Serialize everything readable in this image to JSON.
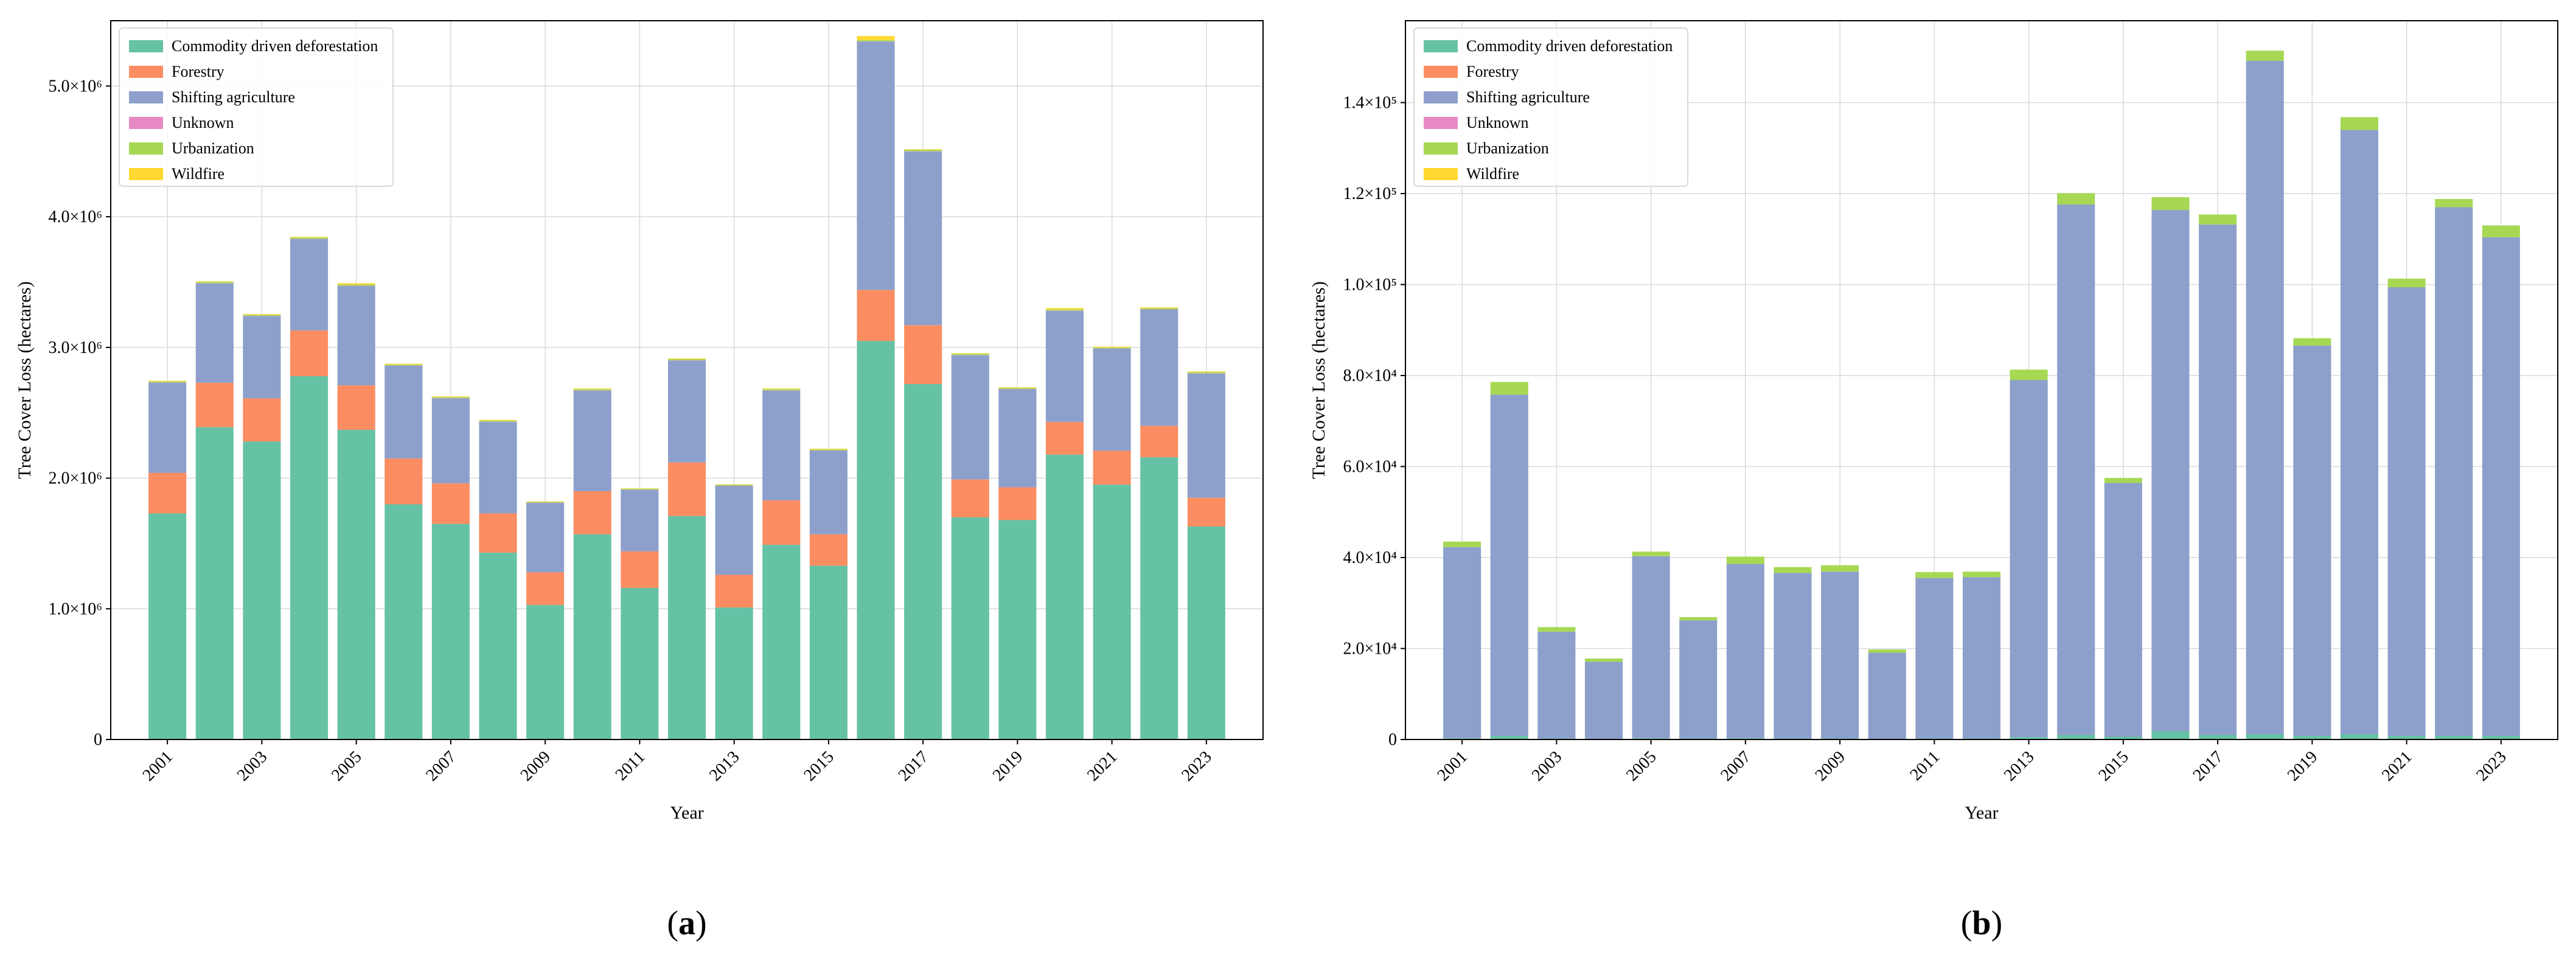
{
  "colors": {
    "Commodity driven deforestation": "#66c2a5",
    "Forestry": "#fc8d62",
    "Shifting agriculture": "#8da0cb",
    "Unknown": "#e78ac3",
    "Urbanization": "#a6d854",
    "Wildfire": "#ffd92f"
  },
  "chart_data": [
    {
      "type": "bar",
      "stacked": true,
      "panel_label": "a",
      "xlabel": "Year",
      "ylabel": "Tree Cover Loss (hectares)",
      "categories": [
        "2001",
        "2002",
        "2003",
        "2004",
        "2005",
        "2006",
        "2007",
        "2008",
        "2009",
        "2010",
        "2011",
        "2012",
        "2013",
        "2014",
        "2015",
        "2016",
        "2017",
        "2018",
        "2019",
        "2020",
        "2021",
        "2022",
        "2023"
      ],
      "x_tick_labels": [
        "2001",
        "2003",
        "2005",
        "2007",
        "2009",
        "2011",
        "2013",
        "2015",
        "2017",
        "2019",
        "2021",
        "2023"
      ],
      "ylim": [
        0,
        5500000
      ],
      "y_ticks": [
        {
          "value": 0,
          "label": "0"
        },
        {
          "value": 1000000,
          "label": "1.0×10⁶"
        },
        {
          "value": 2000000,
          "label": "2.0×10⁶"
        },
        {
          "value": 3000000,
          "label": "3.0×10⁶"
        },
        {
          "value": 4000000,
          "label": "4.0×10⁶"
        },
        {
          "value": 5000000,
          "label": "5.0×10⁶"
        }
      ],
      "grid": true,
      "legend_position": "top-left",
      "series": [
        {
          "name": "Commodity driven deforestation",
          "values": [
            1730000,
            2390000,
            2280000,
            2780000,
            2370000,
            1800000,
            1650000,
            1430000,
            1030000,
            1570000,
            1160000,
            1710000,
            1010000,
            1490000,
            1330000,
            3050000,
            2720000,
            1700000,
            1680000,
            2180000,
            1950000,
            2160000,
            1630000
          ]
        },
        {
          "name": "Forestry",
          "values": [
            310000,
            340000,
            330000,
            350000,
            340000,
            350000,
            310000,
            300000,
            250000,
            330000,
            280000,
            410000,
            250000,
            340000,
            240000,
            390000,
            450000,
            290000,
            250000,
            250000,
            260000,
            240000,
            220000
          ]
        },
        {
          "name": "Shifting agriculture",
          "values": [
            690000,
            760000,
            630000,
            700000,
            760000,
            710000,
            650000,
            700000,
            530000,
            770000,
            470000,
            780000,
            680000,
            840000,
            640000,
            1900000,
            1330000,
            950000,
            750000,
            850000,
            780000,
            890000,
            950000
          ]
        },
        {
          "name": "Unknown",
          "values": [
            2000,
            2000,
            2000,
            2000,
            2000,
            2000,
            2000,
            2000,
            2000,
            2000,
            2000,
            2000,
            2000,
            2000,
            2000,
            2000,
            2000,
            2000,
            2000,
            2000,
            2000,
            2000,
            2000
          ]
        },
        {
          "name": "Urbanization",
          "values": [
            8000,
            9000,
            8000,
            9000,
            9000,
            8000,
            8000,
            8000,
            7000,
            9000,
            7000,
            9000,
            7000,
            9000,
            8000,
            10000,
            10000,
            9000,
            8000,
            9000,
            8000,
            9000,
            9000
          ]
        },
        {
          "name": "Wildfire",
          "values": [
            5000,
            5000,
            5000,
            5000,
            10000,
            5000,
            5000,
            5000,
            3000,
            5000,
            3000,
            5000,
            3000,
            5000,
            5000,
            30000,
            5000,
            5000,
            5000,
            10000,
            5000,
            5000,
            5000
          ]
        }
      ]
    },
    {
      "type": "bar",
      "stacked": true,
      "panel_label": "b",
      "xlabel": "Year",
      "ylabel": "Tree Cover Loss (hectares)",
      "categories": [
        "2001",
        "2002",
        "2003",
        "2004",
        "2005",
        "2006",
        "2007",
        "2008",
        "2009",
        "2010",
        "2011",
        "2012",
        "2013",
        "2014",
        "2015",
        "2016",
        "2017",
        "2018",
        "2019",
        "2020",
        "2021",
        "2022",
        "2023"
      ],
      "x_tick_labels": [
        "2001",
        "2003",
        "2005",
        "2007",
        "2009",
        "2011",
        "2013",
        "2015",
        "2017",
        "2019",
        "2021",
        "2023"
      ],
      "ylim": [
        0,
        158000
      ],
      "y_ticks": [
        {
          "value": 0,
          "label": "0"
        },
        {
          "value": 20000,
          "label": "2.0×10⁴"
        },
        {
          "value": 40000,
          "label": "4.0×10⁴"
        },
        {
          "value": 60000,
          "label": "6.0×10⁴"
        },
        {
          "value": 80000,
          "label": "8.0×10⁴"
        },
        {
          "value": 100000,
          "label": "1.0×10⁵"
        },
        {
          "value": 120000,
          "label": "1.2×10⁵"
        },
        {
          "value": 140000,
          "label": "1.4×10⁵"
        }
      ],
      "grid": true,
      "legend_position": "top-left",
      "series": [
        {
          "name": "Commodity driven deforestation",
          "values": [
            300,
            800,
            200,
            100,
            300,
            200,
            300,
            200,
            200,
            100,
            200,
            200,
            500,
            1000,
            600,
            1800,
            1000,
            1200,
            800,
            1200,
            800,
            800,
            800
          ]
        },
        {
          "name": "Forestry",
          "values": [
            0,
            0,
            0,
            0,
            0,
            0,
            0,
            0,
            0,
            0,
            0,
            0,
            0,
            0,
            0,
            0,
            0,
            0,
            0,
            0,
            0,
            0,
            0
          ]
        },
        {
          "name": "Shifting agriculture",
          "values": [
            42000,
            75000,
            23500,
            17000,
            40000,
            26000,
            38300,
            36400,
            36700,
            19000,
            35300,
            35500,
            78500,
            116600,
            55800,
            114600,
            112200,
            148000,
            85800,
            132800,
            98600,
            116200,
            109600
          ]
        },
        {
          "name": "Unknown",
          "values": [
            0,
            0,
            0,
            0,
            0,
            0,
            0,
            0,
            0,
            0,
            0,
            0,
            0,
            0,
            0,
            0,
            0,
            0,
            0,
            0,
            0,
            0,
            0
          ]
        },
        {
          "name": "Urbanization",
          "values": [
            1200,
            2800,
            1000,
            700,
            1000,
            700,
            1600,
            1300,
            1400,
            700,
            1300,
            1200,
            2300,
            2500,
            1100,
            2800,
            2200,
            2200,
            1600,
            2800,
            1900,
            1800,
            2600
          ]
        },
        {
          "name": "Wildfire",
          "values": [
            0,
            0,
            0,
            0,
            0,
            0,
            0,
            0,
            0,
            0,
            0,
            0,
            0,
            0,
            0,
            0,
            0,
            0,
            0,
            0,
            0,
            0,
            0
          ]
        }
      ]
    }
  ]
}
